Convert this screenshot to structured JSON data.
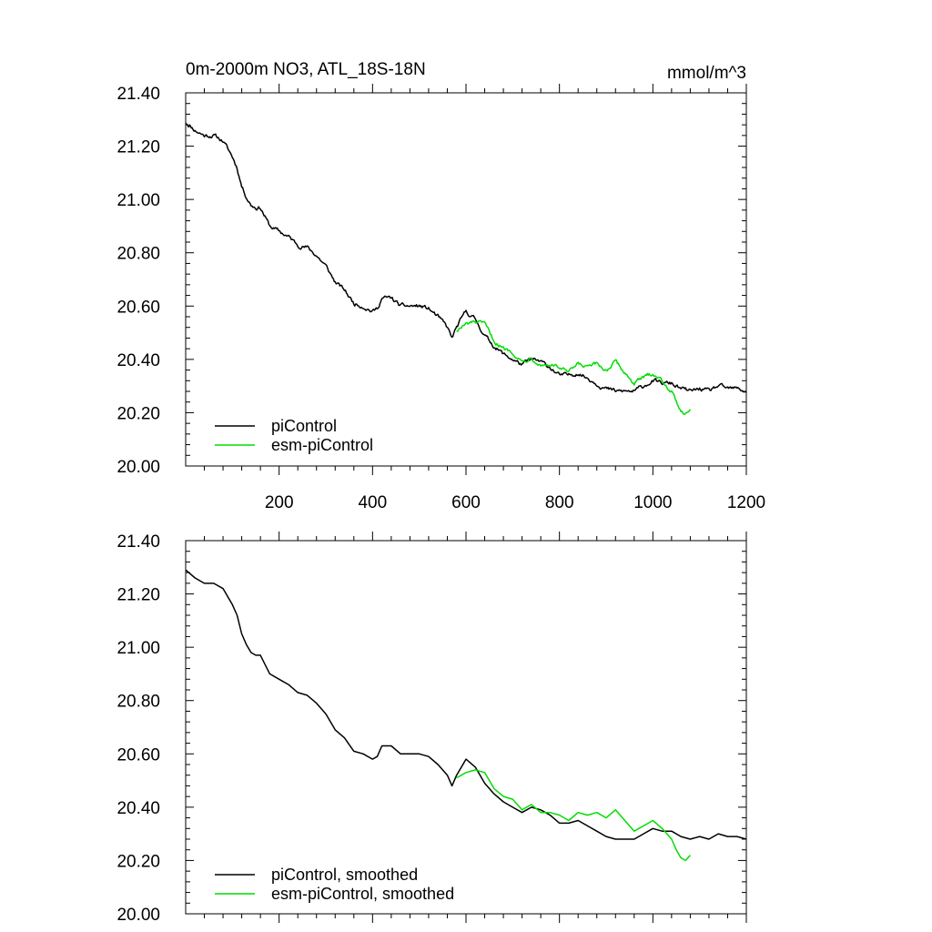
{
  "chart_data": [
    {
      "type": "line",
      "title": "0m-2000m NO3, ATL_18S-18N",
      "units": "mmol/m^3",
      "xlabel": "",
      "ylabel": "",
      "xlim": [
        0,
        1200
      ],
      "ylim": [
        20.0,
        21.4
      ],
      "xticks": [
        200,
        400,
        600,
        800,
        1000,
        1200
      ],
      "show_x_labels": true,
      "yticks": [
        "20.00",
        "20.20",
        "20.40",
        "20.60",
        "20.80",
        "21.00",
        "21.20",
        "21.40"
      ],
      "legend_position": "bottom-left",
      "series": [
        {
          "name": "piControl",
          "color": "#000000",
          "x": [
            0,
            20,
            40,
            60,
            80,
            100,
            110,
            120,
            130,
            140,
            150,
            160,
            180,
            200,
            220,
            240,
            260,
            280,
            300,
            320,
            340,
            360,
            380,
            400,
            410,
            420,
            440,
            460,
            480,
            500,
            520,
            540,
            560,
            570,
            580,
            590,
            600,
            620,
            640,
            660,
            680,
            700,
            720,
            740,
            760,
            780,
            800,
            820,
            840,
            860,
            880,
            900,
            920,
            940,
            960,
            980,
            1000,
            1020,
            1040,
            1060,
            1080,
            1100,
            1120,
            1140,
            1160,
            1180,
            1200
          ],
          "y": [
            21.29,
            21.26,
            21.24,
            21.24,
            21.22,
            21.16,
            21.12,
            21.05,
            21.01,
            20.98,
            20.97,
            20.97,
            20.9,
            20.88,
            20.86,
            20.83,
            20.82,
            20.79,
            20.75,
            20.69,
            20.66,
            20.61,
            20.6,
            20.58,
            20.59,
            20.63,
            20.63,
            20.6,
            20.6,
            20.6,
            20.59,
            20.56,
            20.52,
            20.48,
            20.52,
            20.55,
            20.58,
            20.55,
            20.49,
            20.45,
            20.42,
            20.4,
            20.38,
            20.4,
            20.39,
            20.37,
            20.34,
            20.34,
            20.35,
            20.33,
            20.31,
            20.29,
            20.28,
            20.28,
            20.28,
            20.3,
            20.32,
            20.31,
            20.31,
            20.29,
            20.28,
            20.29,
            20.28,
            20.3,
            20.29,
            20.29,
            20.28
          ]
        },
        {
          "name": "esm-piControl",
          "color": "#00dd00",
          "x": [
            580,
            600,
            620,
            640,
            660,
            680,
            700,
            720,
            740,
            760,
            780,
            800,
            820,
            840,
            860,
            880,
            900,
            920,
            940,
            960,
            980,
            1000,
            1020,
            1040,
            1050,
            1060,
            1070,
            1080
          ],
          "y": [
            20.51,
            20.53,
            20.54,
            20.53,
            20.47,
            20.44,
            20.43,
            20.39,
            20.41,
            20.38,
            20.38,
            20.37,
            20.35,
            20.38,
            20.37,
            20.38,
            20.36,
            20.39,
            20.35,
            20.31,
            20.33,
            20.35,
            20.32,
            20.28,
            20.24,
            20.21,
            20.2,
            20.22
          ]
        }
      ]
    },
    {
      "type": "line",
      "title": "",
      "units": "",
      "xlabel": "",
      "ylabel": "",
      "xlim": [
        0,
        1200
      ],
      "ylim": [
        20.0,
        21.4
      ],
      "xticks": [
        200,
        400,
        600,
        800,
        1000,
        1200
      ],
      "show_x_labels": false,
      "yticks": [
        "20.00",
        "20.20",
        "20.40",
        "20.60",
        "20.80",
        "21.00",
        "21.20",
        "21.40"
      ],
      "legend_position": "bottom-left",
      "series": [
        {
          "name": "piControl, smoothed",
          "color": "#000000",
          "x": [
            0,
            20,
            40,
            60,
            80,
            100,
            110,
            120,
            130,
            140,
            150,
            160,
            180,
            200,
            220,
            240,
            260,
            280,
            300,
            320,
            340,
            360,
            380,
            400,
            410,
            420,
            440,
            460,
            480,
            500,
            520,
            540,
            560,
            570,
            580,
            590,
            600,
            620,
            640,
            660,
            680,
            700,
            720,
            740,
            760,
            780,
            800,
            820,
            840,
            860,
            880,
            900,
            920,
            940,
            960,
            980,
            1000,
            1020,
            1040,
            1060,
            1080,
            1100,
            1120,
            1140,
            1160,
            1180,
            1200
          ],
          "y": [
            21.29,
            21.26,
            21.24,
            21.24,
            21.22,
            21.16,
            21.12,
            21.05,
            21.01,
            20.98,
            20.97,
            20.97,
            20.9,
            20.88,
            20.86,
            20.83,
            20.82,
            20.79,
            20.75,
            20.69,
            20.66,
            20.61,
            20.6,
            20.58,
            20.59,
            20.63,
            20.63,
            20.6,
            20.6,
            20.6,
            20.59,
            20.56,
            20.52,
            20.48,
            20.52,
            20.55,
            20.58,
            20.55,
            20.49,
            20.45,
            20.42,
            20.4,
            20.38,
            20.4,
            20.39,
            20.37,
            20.34,
            20.34,
            20.35,
            20.33,
            20.31,
            20.29,
            20.28,
            20.28,
            20.28,
            20.3,
            20.32,
            20.31,
            20.31,
            20.29,
            20.28,
            20.29,
            20.28,
            20.3,
            20.29,
            20.29,
            20.28
          ]
        },
        {
          "name": "esm-piControl, smoothed",
          "color": "#00dd00",
          "x": [
            580,
            600,
            620,
            640,
            660,
            680,
            700,
            720,
            740,
            760,
            780,
            800,
            820,
            840,
            860,
            880,
            900,
            920,
            940,
            960,
            980,
            1000,
            1020,
            1040,
            1050,
            1060,
            1070,
            1080
          ],
          "y": [
            20.51,
            20.53,
            20.54,
            20.53,
            20.47,
            20.44,
            20.43,
            20.39,
            20.41,
            20.38,
            20.38,
            20.37,
            20.35,
            20.38,
            20.37,
            20.38,
            20.36,
            20.39,
            20.35,
            20.31,
            20.33,
            20.35,
            20.32,
            20.28,
            20.24,
            20.21,
            20.2,
            20.22
          ]
        }
      ]
    }
  ]
}
